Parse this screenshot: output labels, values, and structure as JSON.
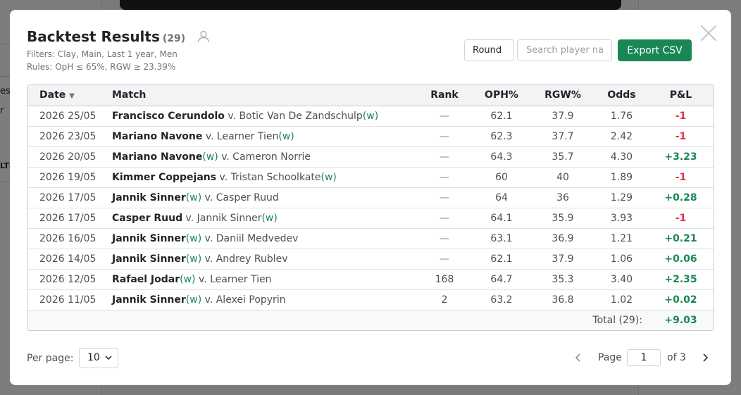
{
  "background": {
    "frag1": "es",
    "frag2": "r",
    "frag3": "LTI"
  },
  "modal": {
    "title": "Backtest Results",
    "count": "(29)",
    "filters": "Filters: Clay, Main, Last 1 year, Men",
    "rules": "Rules: OpH ≤ 65%, RGW ≥ 23.39%",
    "round_label": "Round",
    "search_placeholder": "Search player nan",
    "export_label": "Export CSV"
  },
  "table": {
    "headers": {
      "date": "Date",
      "match": "Match",
      "rank": "Rank",
      "oph": "OPH%",
      "rgw": "RGW%",
      "odds": "Odds",
      "pl": "P&L"
    },
    "rows": [
      {
        "date": "2026 25/05",
        "p1": "Francisco Cerundolo",
        "p1w": "",
        "vs": "v.",
        "p2": "Botic Van De Zandschulp",
        "p2w": "(w)",
        "rank": "—",
        "oph": "62.1",
        "rgw": "37.9",
        "odds": "1.76",
        "pl": "-1"
      },
      {
        "date": "2026 23/05",
        "p1": "Mariano Navone",
        "p1w": "",
        "vs": "v.",
        "p2": "Learner Tien",
        "p2w": "(w)",
        "rank": "—",
        "oph": "62.3",
        "rgw": "37.7",
        "odds": "2.42",
        "pl": "-1"
      },
      {
        "date": "2026 20/05",
        "p1": "Mariano Navone",
        "p1w": "(w)",
        "vs": "v.",
        "p2": "Cameron Norrie",
        "p2w": "",
        "rank": "—",
        "oph": "64.3",
        "rgw": "35.7",
        "odds": "4.30",
        "pl": "+3.23"
      },
      {
        "date": "2026 19/05",
        "p1": "Kimmer Coppejans",
        "p1w": "",
        "vs": "v.",
        "p2": "Tristan Schoolkate",
        "p2w": "(w)",
        "rank": "—",
        "oph": "60",
        "rgw": "40",
        "odds": "1.89",
        "pl": "-1"
      },
      {
        "date": "2026 17/05",
        "p1": "Jannik Sinner",
        "p1w": "(w)",
        "vs": "v.",
        "p2": "Casper Ruud",
        "p2w": "",
        "rank": "—",
        "oph": "64",
        "rgw": "36",
        "odds": "1.29",
        "pl": "+0.28"
      },
      {
        "date": "2026 17/05",
        "p1": "Casper Ruud",
        "p1w": "",
        "vs": "v.",
        "p2": "Jannik Sinner",
        "p2w": "(w)",
        "rank": "—",
        "oph": "64.1",
        "rgw": "35.9",
        "odds": "3.93",
        "pl": "-1"
      },
      {
        "date": "2026 16/05",
        "p1": "Jannik Sinner",
        "p1w": "(w)",
        "vs": "v.",
        "p2": "Daniil Medvedev",
        "p2w": "",
        "rank": "—",
        "oph": "63.1",
        "rgw": "36.9",
        "odds": "1.21",
        "pl": "+0.21"
      },
      {
        "date": "2026 14/05",
        "p1": "Jannik Sinner",
        "p1w": "(w)",
        "vs": "v.",
        "p2": "Andrey Rublev",
        "p2w": "",
        "rank": "—",
        "oph": "62.1",
        "rgw": "37.9",
        "odds": "1.06",
        "pl": "+0.06"
      },
      {
        "date": "2026 12/05",
        "p1": "Rafael Jodar",
        "p1w": "(w)",
        "vs": "v.",
        "p2": "Learner Tien",
        "p2w": "",
        "rank": "168",
        "oph": "64.7",
        "rgw": "35.3",
        "odds": "3.40",
        "pl": "+2.35"
      },
      {
        "date": "2026 11/05",
        "p1": "Jannik Sinner",
        "p1w": "(w)",
        "vs": "v.",
        "p2": "Alexei Popyrin",
        "p2w": "",
        "rank": "2",
        "oph": "63.2",
        "rgw": "36.8",
        "odds": "1.02",
        "pl": "+0.02"
      }
    ],
    "total_label": "Total (29):",
    "total_value": "+9.03"
  },
  "pagination": {
    "per_page_label": "Per page:",
    "per_page_value": "10",
    "page_label": "Page",
    "page_value": "1",
    "of_label": "of 3"
  },
  "colors": {
    "win": "#198754",
    "loss": "#dc3545",
    "export": "#198754"
  },
  "icons": {
    "title_icon": "user-icon",
    "close": "close-icon",
    "sort": "sort-down-icon",
    "prev": "chevron-left-icon",
    "next": "chevron-right-icon",
    "select": "chevron-down-icon"
  }
}
